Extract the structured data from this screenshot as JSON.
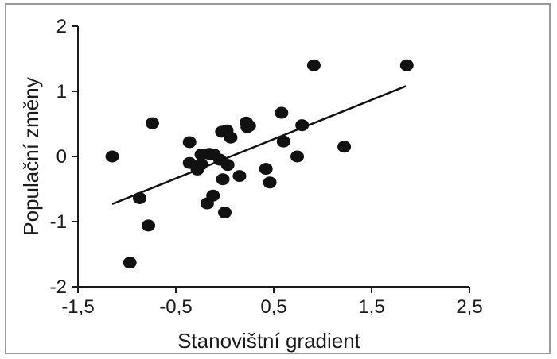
{
  "chart_data": {
    "type": "scatter",
    "title": "",
    "xlabel": "Stanovištní gradient",
    "ylabel": "Populační změny",
    "xlim": [
      -1.5,
      2.5
    ],
    "ylim": [
      -2,
      2
    ],
    "x_ticks": [
      -1.5,
      -0.5,
      0.5,
      1.5,
      2.5
    ],
    "x_tick_labels": [
      "-1,5",
      "-0,5",
      "0,5",
      "1,5",
      "2,5"
    ],
    "y_ticks": [
      2,
      1,
      0,
      -1,
      -2
    ],
    "y_tick_labels": [
      "2",
      "1",
      "0",
      "-1",
      "-2"
    ],
    "grid": false,
    "legend": "none",
    "colors": {
      "points": "#111111",
      "line": "#111111",
      "axes": "#1a1a1a"
    },
    "series": [
      {
        "points": [
          [
            -1.15,
            0.0
          ],
          [
            -0.97,
            -1.63
          ],
          [
            -0.87,
            -0.64
          ],
          [
            -0.78,
            -1.06
          ],
          [
            -0.74,
            0.51
          ],
          [
            -0.36,
            0.22
          ],
          [
            -0.36,
            -0.1
          ],
          [
            -0.28,
            -0.2
          ],
          [
            -0.24,
            0.03
          ],
          [
            -0.24,
            -0.12
          ],
          [
            -0.16,
            0.04
          ],
          [
            -0.18,
            -0.72
          ],
          [
            -0.12,
            -0.6
          ],
          [
            -0.11,
            0.03
          ],
          [
            -0.05,
            -0.05
          ],
          [
            -0.03,
            0.38
          ],
          [
            -0.02,
            -0.35
          ],
          [
            0.0,
            -0.86
          ],
          [
            0.02,
            0.4
          ],
          [
            0.03,
            -0.13
          ],
          [
            0.06,
            0.29
          ],
          [
            0.15,
            -0.3
          ],
          [
            0.22,
            0.52
          ],
          [
            0.23,
            0.45
          ],
          [
            0.25,
            0.47
          ],
          [
            0.42,
            -0.19
          ],
          [
            0.46,
            -0.4
          ],
          [
            0.58,
            0.67
          ],
          [
            0.6,
            0.23
          ],
          [
            0.74,
            0.0
          ],
          [
            0.79,
            0.48
          ],
          [
            0.91,
            1.4
          ],
          [
            1.22,
            0.15
          ],
          [
            1.86,
            1.4
          ]
        ]
      }
    ],
    "trendline": {
      "x": [
        -1.15,
        1.85
      ],
      "y": [
        -0.73,
        1.08
      ]
    }
  }
}
